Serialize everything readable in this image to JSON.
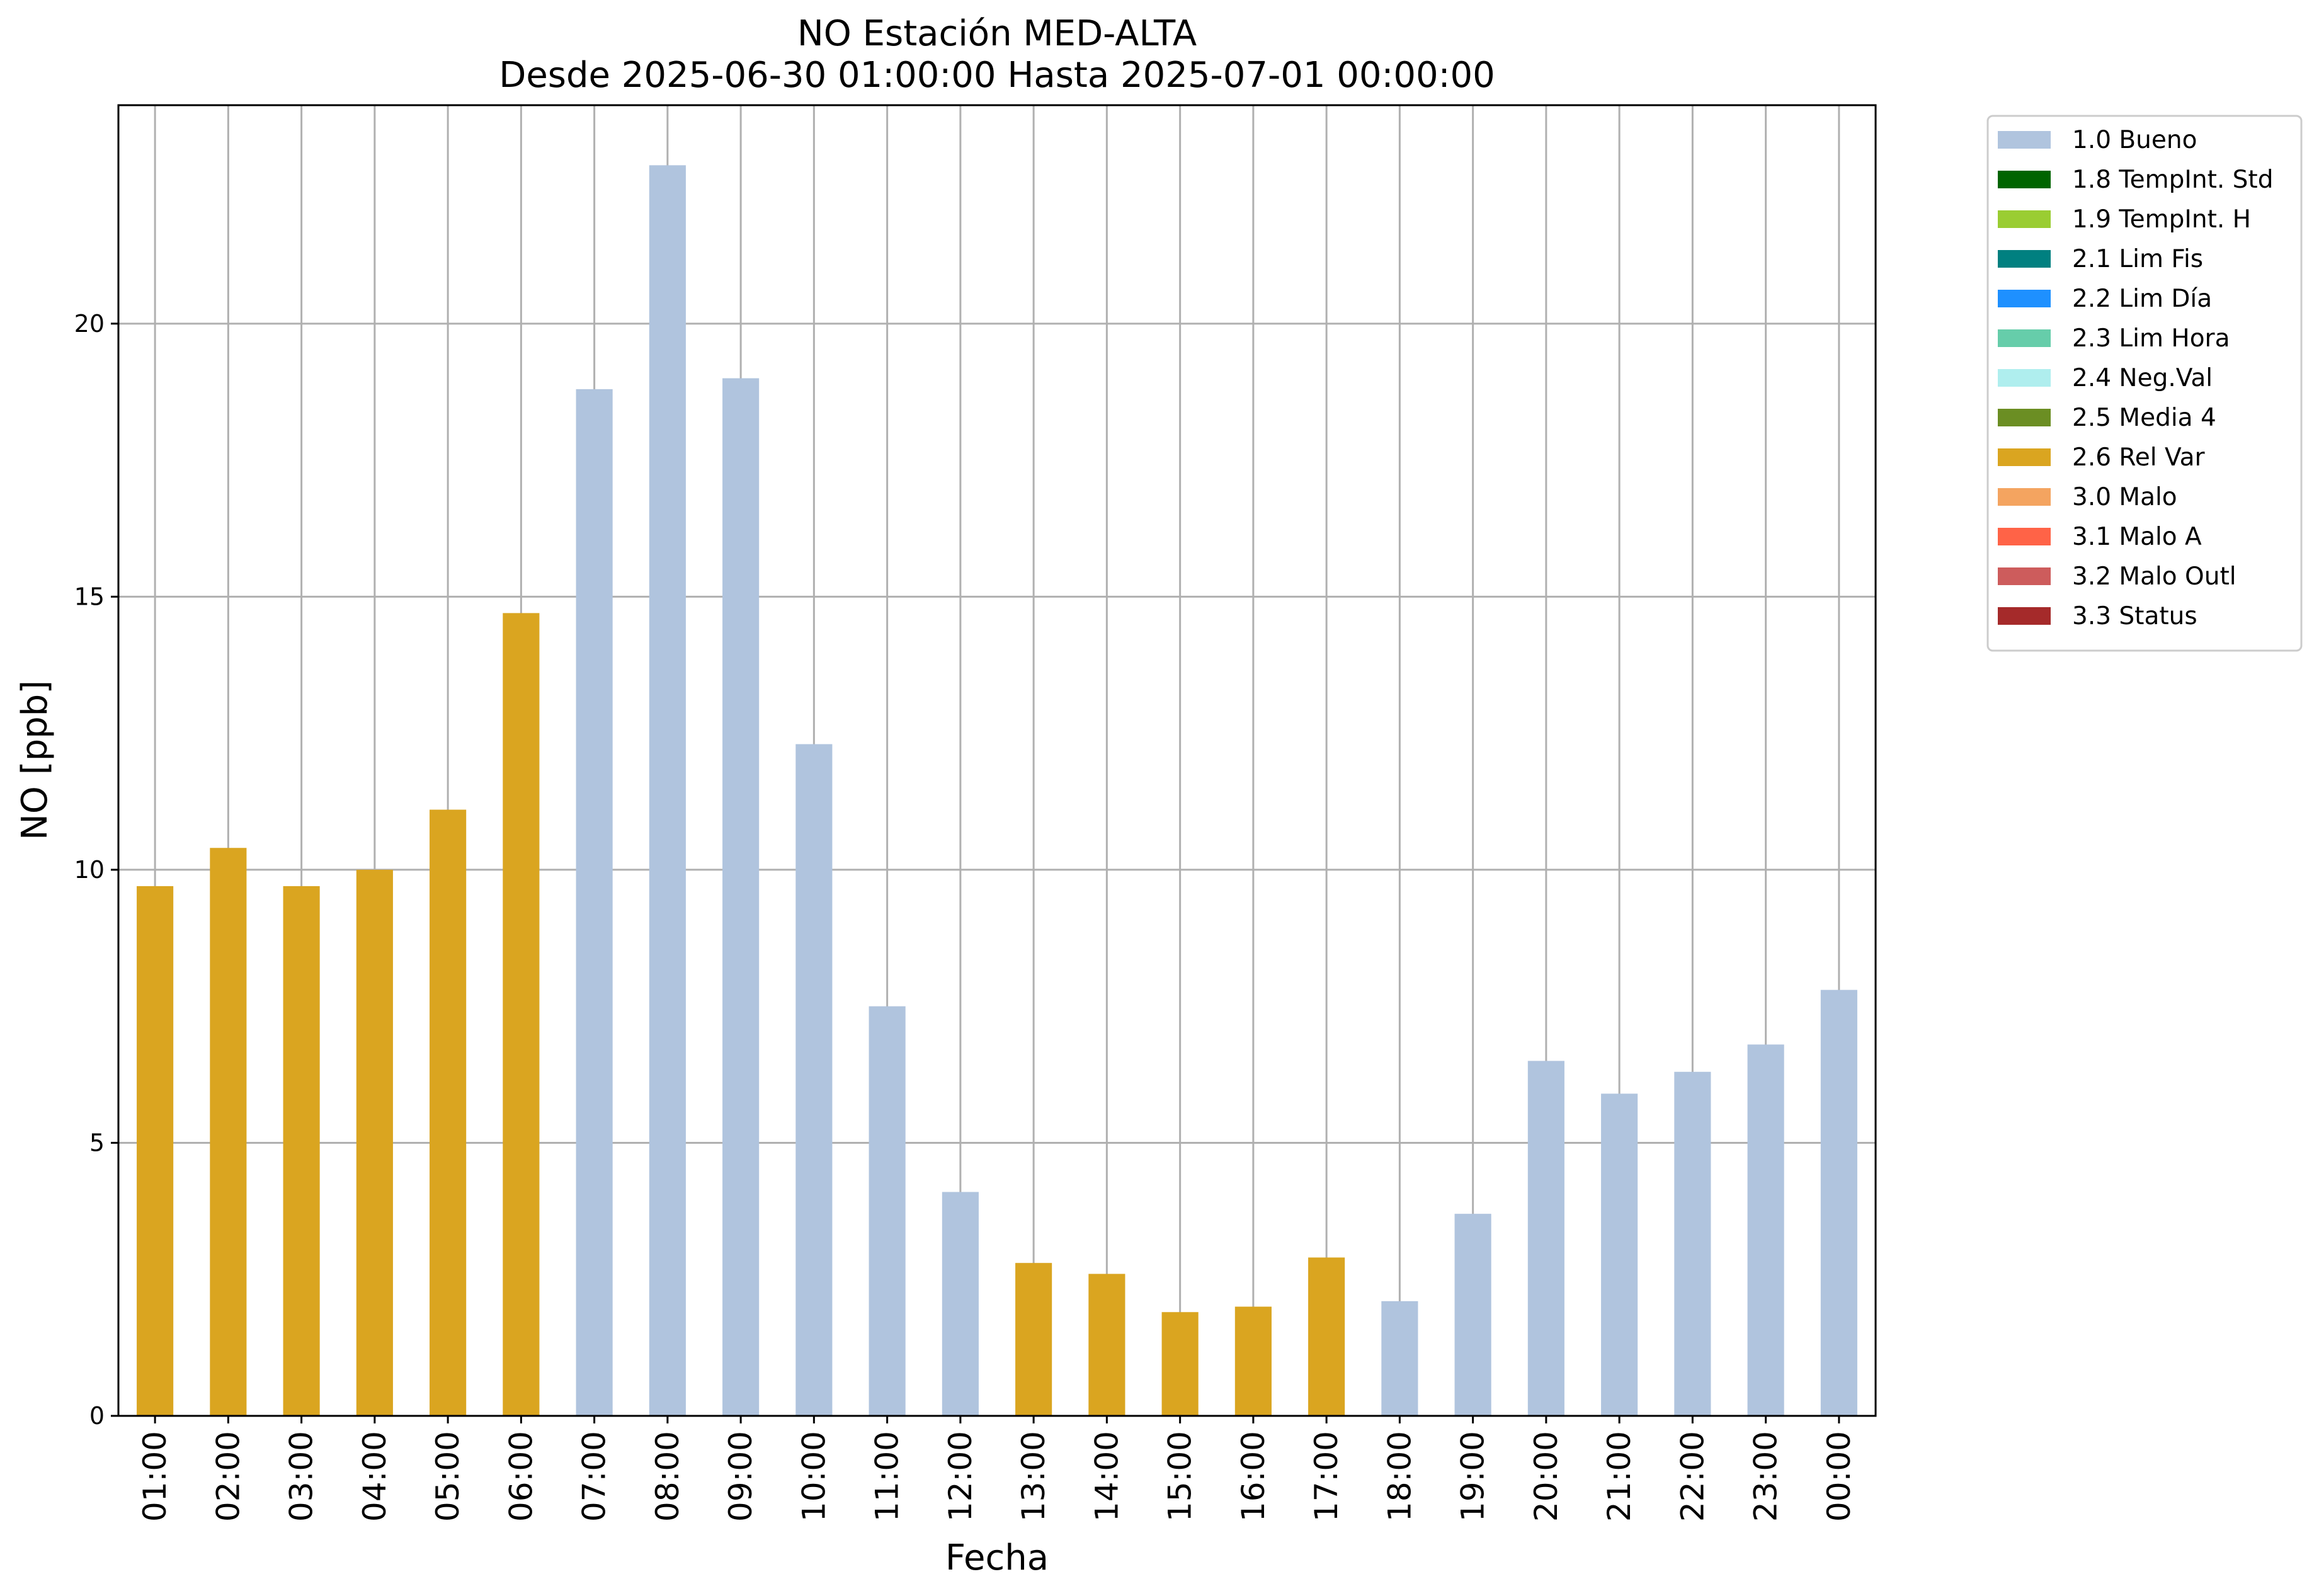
{
  "chart_data": {
    "type": "bar",
    "title": "NO Estación MED-ALTA",
    "subtitle": "Desde 2025-06-30 01:00:00 Hasta 2025-07-01 00:00:00",
    "xlabel": "Fecha",
    "ylabel": "NO [ppb]",
    "ylim": [
      0,
      24
    ],
    "yticks": [
      0,
      5,
      10,
      15,
      20
    ],
    "grid": true,
    "legend_position": "outside right, top",
    "categories": [
      "01:00",
      "02:00",
      "03:00",
      "04:00",
      "05:00",
      "06:00",
      "07:00",
      "08:00",
      "09:00",
      "10:00",
      "11:00",
      "12:00",
      "13:00",
      "14:00",
      "15:00",
      "16:00",
      "17:00",
      "18:00",
      "19:00",
      "20:00",
      "21:00",
      "22:00",
      "23:00",
      "00:00"
    ],
    "values": [
      9.7,
      10.4,
      9.7,
      10.0,
      11.1,
      14.7,
      18.8,
      22.9,
      19.0,
      12.3,
      7.5,
      4.1,
      2.8,
      2.6,
      1.9,
      2.0,
      2.9,
      2.1,
      3.7,
      6.5,
      5.9,
      6.3,
      6.8,
      7.8
    ],
    "value_flags": [
      "2.6 Rel Var",
      "2.6 Rel Var",
      "2.6 Rel Var",
      "2.6 Rel Var",
      "2.6 Rel Var",
      "2.6 Rel Var",
      "1.0 Bueno",
      "1.0 Bueno",
      "1.0 Bueno",
      "1.0 Bueno",
      "1.0 Bueno",
      "1.0 Bueno",
      "2.6 Rel Var",
      "2.6 Rel Var",
      "2.6 Rel Var",
      "2.6 Rel Var",
      "2.6 Rel Var",
      "1.0 Bueno",
      "1.0 Bueno",
      "1.0 Bueno",
      "1.0 Bueno",
      "1.0 Bueno",
      "1.0 Bueno",
      "1.0 Bueno"
    ],
    "legend": [
      {
        "label": "1.0 Bueno",
        "color": "#b0c4de"
      },
      {
        "label": "1.8 TempInt. Std",
        "color": "#006400"
      },
      {
        "label": "1.9 TempInt. H",
        "color": "#9acd32"
      },
      {
        "label": "2.1 Lim Fis",
        "color": "#008080"
      },
      {
        "label": "2.2 Lim Día",
        "color": "#1e90ff"
      },
      {
        "label": "2.3 Lim Hora",
        "color": "#66cdaa"
      },
      {
        "label": "2.4 Neg.Val",
        "color": "#afeeee"
      },
      {
        "label": "2.5 Media 4",
        "color": "#6b8e23"
      },
      {
        "label": "2.6 Rel Var",
        "color": "#daa520"
      },
      {
        "label": "3.0 Malo",
        "color": "#f4a460"
      },
      {
        "label": "3.1 Malo A",
        "color": "#ff6347"
      },
      {
        "label": "3.2 Malo Outl",
        "color": "#cd5c5c"
      },
      {
        "label": "3.3 Status",
        "color": "#a52a2a"
      }
    ]
  }
}
